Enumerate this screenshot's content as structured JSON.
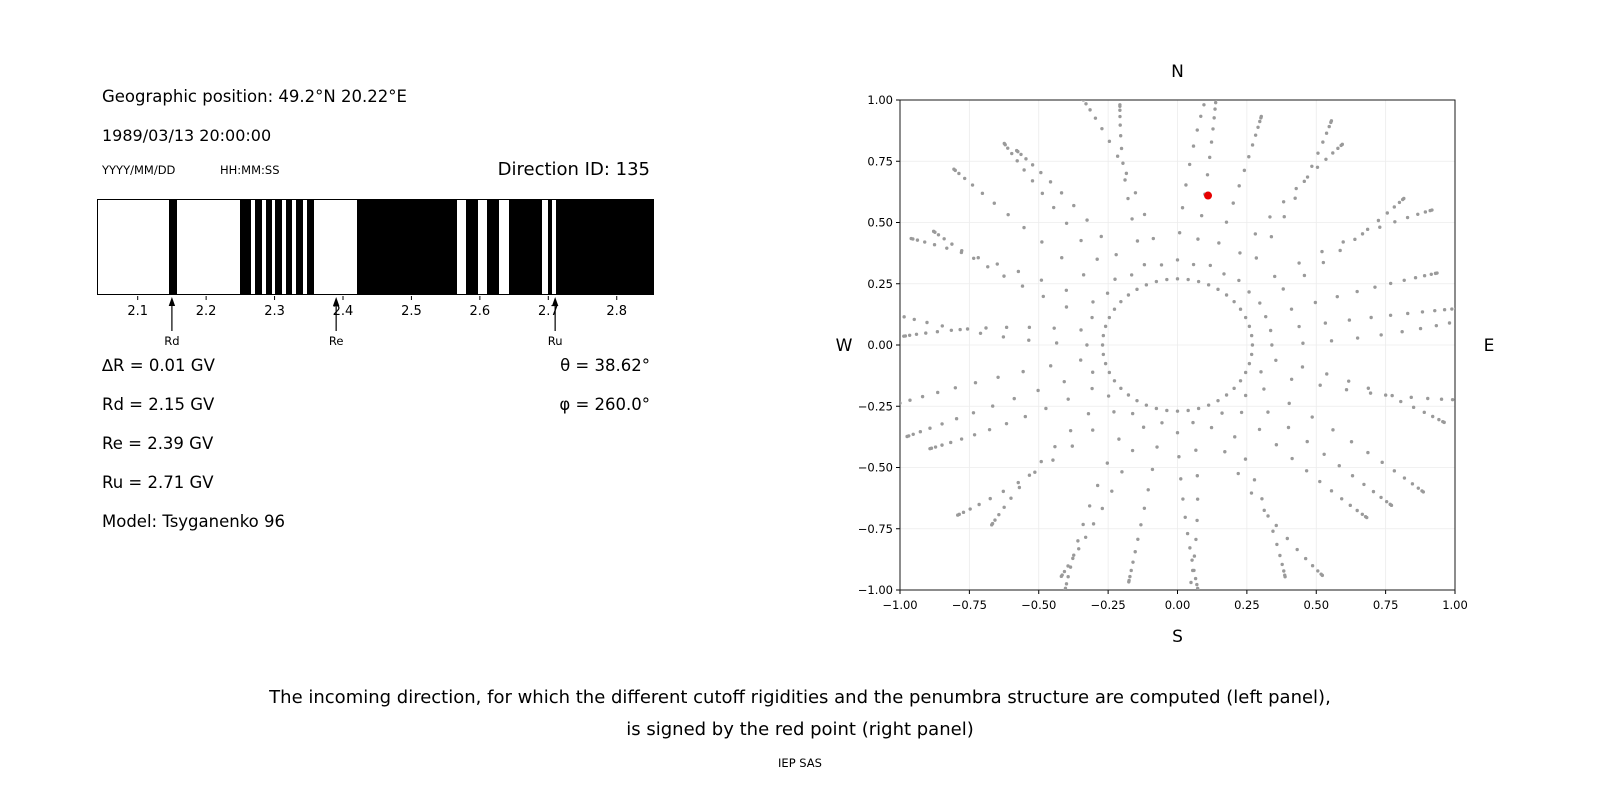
{
  "info": {
    "geo_position": "Geographic position: 49.2°N 20.22°E",
    "datetime": "1989/03/13 20:00:00",
    "date_format_hint": "YYYY/MM/DD",
    "time_format_hint": "HH:MM:SS",
    "direction_id": "Direction ID: 135",
    "delta_r": "∆R = 0.01 GV",
    "rd": "Rd = 2.15 GV",
    "re": "Re = 2.39 GV",
    "ru": "Ru = 2.71 GV",
    "model": "Model: Tsyganenko 96",
    "theta": "θ = 38.62°",
    "phi": "φ = 260.0°"
  },
  "caption": {
    "line1": "The incoming direction, for which the different cutoff rigidities and the penumbra structure are computed (left panel),",
    "line2": "is signed by the red point (right panel)",
    "credit": "IEP SAS"
  },
  "chart_data": [
    {
      "name": "penumbra-structure",
      "type": "bar",
      "description": "Penumbra structure barcode: black bands are forbidden rigidity intervals (GV)",
      "xlim": [
        2.042,
        2.853
      ],
      "xticks": [
        2.1,
        2.2,
        2.3,
        2.4,
        2.5,
        2.6,
        2.7,
        2.8
      ],
      "bar_color": "#000000",
      "background": "#ffffff",
      "black_bands_gv": [
        [
          2.145,
          2.158
        ],
        [
          2.25,
          2.265
        ],
        [
          2.271,
          2.282
        ],
        [
          2.287,
          2.296
        ],
        [
          2.301,
          2.311
        ],
        [
          2.317,
          2.326
        ],
        [
          2.331,
          2.341
        ],
        [
          2.347,
          2.358
        ],
        [
          2.42,
          2.567
        ],
        [
          2.58,
          2.597
        ],
        [
          2.61,
          2.628
        ],
        [
          2.642,
          2.691
        ],
        [
          2.7,
          2.706
        ],
        [
          2.711,
          2.853
        ]
      ],
      "markers": [
        {
          "label": "Rd",
          "x_gv": 2.15
        },
        {
          "label": "Re",
          "x_gv": 2.39
        },
        {
          "label": "Ru",
          "x_gv": 2.71
        }
      ],
      "values": {
        "delta_R_gv": 0.01,
        "Rd_gv": 2.15,
        "Re_gv": 2.39,
        "Ru_gv": 2.71,
        "theta_deg": 38.62,
        "phi_deg": 260.0,
        "model": "Tsyganenko 96"
      }
    },
    {
      "name": "incoming-direction-map",
      "type": "scatter",
      "description": "Sky map of incoming directions; gray dotted radial grid, red point marks computed direction",
      "xlim": [
        -1,
        1
      ],
      "ylim": [
        -1,
        1
      ],
      "xticks": [
        -1.0,
        -0.75,
        -0.5,
        -0.25,
        0.0,
        0.25,
        0.5,
        0.75,
        1.0
      ],
      "yticks": [
        -1.0,
        -0.75,
        -0.5,
        -0.25,
        0.0,
        0.25,
        0.5,
        0.75,
        1.0
      ],
      "compass_labels": {
        "top": "N",
        "bottom": "S",
        "left": "W",
        "right": "E"
      },
      "red_point": {
        "x": 0.11,
        "y": 0.61
      },
      "red_color": "#e60000",
      "grid_dots": {
        "color": "#9a9a9a",
        "inner_ring": {
          "radius": 0.27,
          "count": 44
        },
        "spokes": {
          "count": 36,
          "step_deg": 10,
          "r_start": 0.34,
          "r_end": 1.05,
          "dots_per_spoke": 13
        }
      },
      "grid": true,
      "legend": false
    }
  ]
}
